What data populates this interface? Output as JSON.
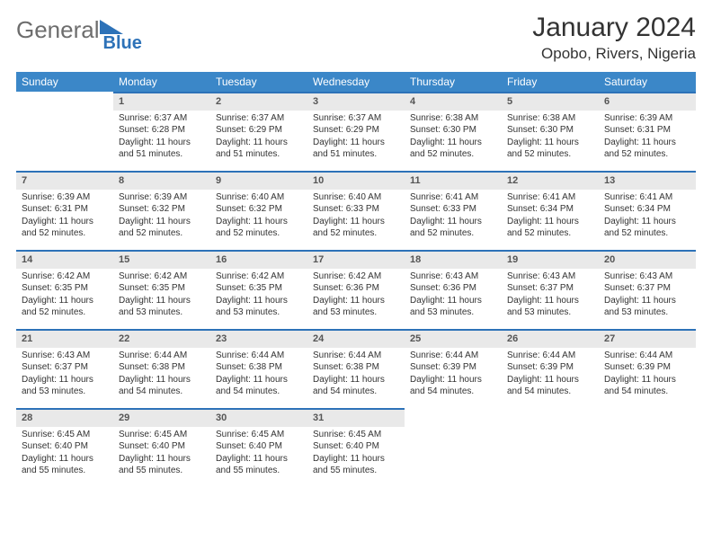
{
  "brand": {
    "text1": "General",
    "text2": "Blue"
  },
  "title": "January 2024",
  "location": "Opobo, Rivers, Nigeria",
  "colors": {
    "header_bg": "#3b87c8",
    "header_text": "#ffffff",
    "daynum_bg": "#e9e9e9",
    "daynum_border": "#2d72b8",
    "body_text": "#333333",
    "background": "#ffffff"
  },
  "typography": {
    "title_fontsize": 30,
    "location_fontsize": 17,
    "dow_fontsize": 12,
    "cell_fontsize": 10
  },
  "calendar": {
    "columns": [
      "Sunday",
      "Monday",
      "Tuesday",
      "Wednesday",
      "Thursday",
      "Friday",
      "Saturday"
    ],
    "first_weekday_index": 1,
    "days": [
      {
        "n": 1,
        "sunrise": "6:37 AM",
        "sunset": "6:28 PM",
        "daylight": "11 hours and 51 minutes."
      },
      {
        "n": 2,
        "sunrise": "6:37 AM",
        "sunset": "6:29 PM",
        "daylight": "11 hours and 51 minutes."
      },
      {
        "n": 3,
        "sunrise": "6:37 AM",
        "sunset": "6:29 PM",
        "daylight": "11 hours and 51 minutes."
      },
      {
        "n": 4,
        "sunrise": "6:38 AM",
        "sunset": "6:30 PM",
        "daylight": "11 hours and 52 minutes."
      },
      {
        "n": 5,
        "sunrise": "6:38 AM",
        "sunset": "6:30 PM",
        "daylight": "11 hours and 52 minutes."
      },
      {
        "n": 6,
        "sunrise": "6:39 AM",
        "sunset": "6:31 PM",
        "daylight": "11 hours and 52 minutes."
      },
      {
        "n": 7,
        "sunrise": "6:39 AM",
        "sunset": "6:31 PM",
        "daylight": "11 hours and 52 minutes."
      },
      {
        "n": 8,
        "sunrise": "6:39 AM",
        "sunset": "6:32 PM",
        "daylight": "11 hours and 52 minutes."
      },
      {
        "n": 9,
        "sunrise": "6:40 AM",
        "sunset": "6:32 PM",
        "daylight": "11 hours and 52 minutes."
      },
      {
        "n": 10,
        "sunrise": "6:40 AM",
        "sunset": "6:33 PM",
        "daylight": "11 hours and 52 minutes."
      },
      {
        "n": 11,
        "sunrise": "6:41 AM",
        "sunset": "6:33 PM",
        "daylight": "11 hours and 52 minutes."
      },
      {
        "n": 12,
        "sunrise": "6:41 AM",
        "sunset": "6:34 PM",
        "daylight": "11 hours and 52 minutes."
      },
      {
        "n": 13,
        "sunrise": "6:41 AM",
        "sunset": "6:34 PM",
        "daylight": "11 hours and 52 minutes."
      },
      {
        "n": 14,
        "sunrise": "6:42 AM",
        "sunset": "6:35 PM",
        "daylight": "11 hours and 52 minutes."
      },
      {
        "n": 15,
        "sunrise": "6:42 AM",
        "sunset": "6:35 PM",
        "daylight": "11 hours and 53 minutes."
      },
      {
        "n": 16,
        "sunrise": "6:42 AM",
        "sunset": "6:35 PM",
        "daylight": "11 hours and 53 minutes."
      },
      {
        "n": 17,
        "sunrise": "6:42 AM",
        "sunset": "6:36 PM",
        "daylight": "11 hours and 53 minutes."
      },
      {
        "n": 18,
        "sunrise": "6:43 AM",
        "sunset": "6:36 PM",
        "daylight": "11 hours and 53 minutes."
      },
      {
        "n": 19,
        "sunrise": "6:43 AM",
        "sunset": "6:37 PM",
        "daylight": "11 hours and 53 minutes."
      },
      {
        "n": 20,
        "sunrise": "6:43 AM",
        "sunset": "6:37 PM",
        "daylight": "11 hours and 53 minutes."
      },
      {
        "n": 21,
        "sunrise": "6:43 AM",
        "sunset": "6:37 PM",
        "daylight": "11 hours and 53 minutes."
      },
      {
        "n": 22,
        "sunrise": "6:44 AM",
        "sunset": "6:38 PM",
        "daylight": "11 hours and 54 minutes."
      },
      {
        "n": 23,
        "sunrise": "6:44 AM",
        "sunset": "6:38 PM",
        "daylight": "11 hours and 54 minutes."
      },
      {
        "n": 24,
        "sunrise": "6:44 AM",
        "sunset": "6:38 PM",
        "daylight": "11 hours and 54 minutes."
      },
      {
        "n": 25,
        "sunrise": "6:44 AM",
        "sunset": "6:39 PM",
        "daylight": "11 hours and 54 minutes."
      },
      {
        "n": 26,
        "sunrise": "6:44 AM",
        "sunset": "6:39 PM",
        "daylight": "11 hours and 54 minutes."
      },
      {
        "n": 27,
        "sunrise": "6:44 AM",
        "sunset": "6:39 PM",
        "daylight": "11 hours and 54 minutes."
      },
      {
        "n": 28,
        "sunrise": "6:45 AM",
        "sunset": "6:40 PM",
        "daylight": "11 hours and 55 minutes."
      },
      {
        "n": 29,
        "sunrise": "6:45 AM",
        "sunset": "6:40 PM",
        "daylight": "11 hours and 55 minutes."
      },
      {
        "n": 30,
        "sunrise": "6:45 AM",
        "sunset": "6:40 PM",
        "daylight": "11 hours and 55 minutes."
      },
      {
        "n": 31,
        "sunrise": "6:45 AM",
        "sunset": "6:40 PM",
        "daylight": "11 hours and 55 minutes."
      }
    ],
    "labels": {
      "sunrise": "Sunrise:",
      "sunset": "Sunset:",
      "daylight": "Daylight:"
    }
  }
}
